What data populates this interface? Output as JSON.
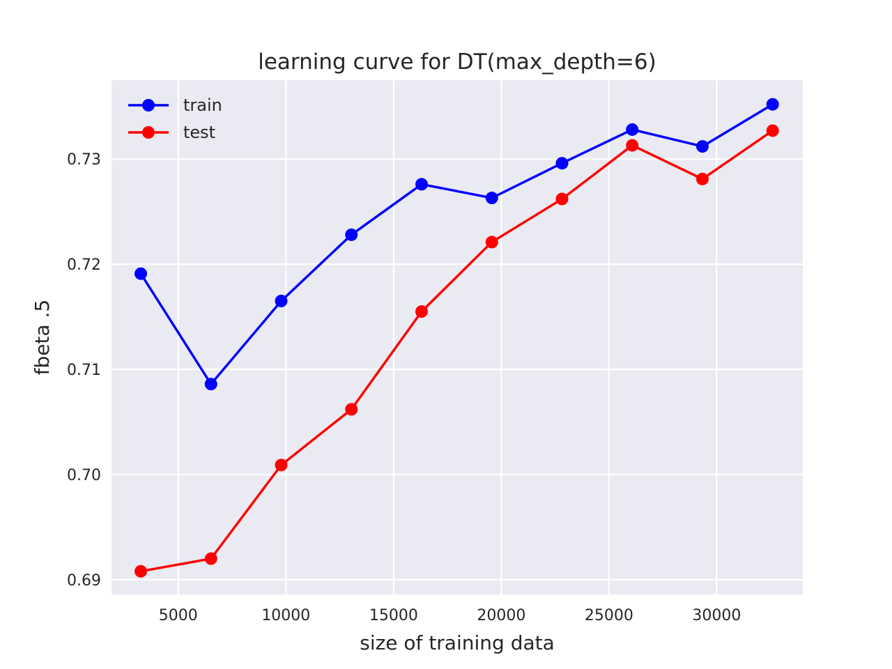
{
  "chart_data": {
    "type": "line",
    "title": "learning curve for DT(max_depth=6)",
    "xlabel": "size of training data",
    "ylabel": "fbeta .5",
    "xlim": [
      1900,
      34000
    ],
    "ylim": [
      0.6886,
      0.7375
    ],
    "x_ticks": [
      5000,
      10000,
      15000,
      20000,
      25000,
      30000
    ],
    "x_tick_labels": [
      "5000",
      "10000",
      "15000",
      "20000",
      "25000",
      "30000"
    ],
    "y_ticks": [
      0.69,
      0.7,
      0.71,
      0.72,
      0.73
    ],
    "y_tick_labels": [
      "0.69",
      "0.70",
      "0.71",
      "0.72",
      "0.73"
    ],
    "x": [
      3260,
      6520,
      9780,
      13040,
      16300,
      19560,
      22820,
      26080,
      29340,
      32600
    ],
    "series": [
      {
        "name": "train",
        "color": "#0000ff",
        "values": [
          0.7191,
          0.7086,
          0.7165,
          0.7228,
          0.7276,
          0.7263,
          0.7296,
          0.7328,
          0.7312,
          0.7352
        ]
      },
      {
        "name": "test",
        "color": "#ff0000",
        "values": [
          0.6908,
          0.692,
          0.7009,
          0.7062,
          0.7155,
          0.7221,
          0.7262,
          0.7313,
          0.7281,
          0.7327
        ]
      }
    ],
    "grid": true,
    "legend_position": "top-left",
    "background_color": "#eaeaf2",
    "grid_color": "#ffffff"
  }
}
